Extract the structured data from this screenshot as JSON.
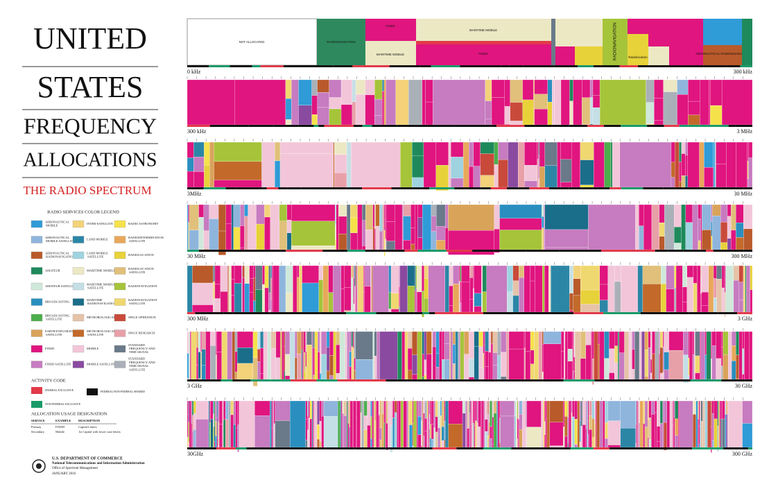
{
  "title": {
    "lines": [
      "UNITED",
      "STATES",
      "FREQUENCY",
      "ALLOCATIONS"
    ],
    "subtitle": "THE RADIO SPECTRUM"
  },
  "legend": {
    "title": "RADIO SERVICES COLOR LEGEND",
    "items": [
      {
        "label": "AERONAUTICAL MOBILE",
        "color": "#2f9bd7"
      },
      {
        "label": "AERONAUTICAL MOBILE SATELLITE",
        "color": "#8fb5dd"
      },
      {
        "label": "AERONAUTICAL RADIONAVIGATION",
        "color": "#b95a2b"
      },
      {
        "label": "AMATEUR",
        "color": "#1e8a5c"
      },
      {
        "label": "AMATEUR SATELLITE",
        "color": "#cfe8da"
      },
      {
        "label": "BROADCASTING",
        "color": "#2a8fbf"
      },
      {
        "label": "BROADCASTING SATELLITE",
        "color": "#4cae4c"
      },
      {
        "label": "EARTH EXPLORATION SATELLITE",
        "color": "#d9a35a"
      },
      {
        "label": "FIXED",
        "color": "#e0157f"
      },
      {
        "label": "FIXED SATELLITE",
        "color": "#c77bc0"
      },
      {
        "label": "INTER-SATELLITE",
        "color": "#f3d27a"
      },
      {
        "label": "LAND MOBILE",
        "color": "#2b86a6"
      },
      {
        "label": "LAND MOBILE SATELLITE",
        "color": "#9fd3e0"
      },
      {
        "label": "MARITIME MOBILE",
        "color": "#ece8c4"
      },
      {
        "label": "MARITIME MOBILE SATELLITE",
        "color": "#c4dfe6"
      },
      {
        "label": "MARITIME RADIONAVIGATION",
        "color": "#1a6e8a"
      },
      {
        "label": "METEOROLOGICAL",
        "color": "#e6c3a8"
      },
      {
        "label": "METEOROLOGICAL SATELLITE",
        "color": "#c36a2a"
      },
      {
        "label": "MOBILE",
        "color": "#f2c6d8"
      },
      {
        "label": "MOBILE SATELLITE",
        "color": "#8a4aa0"
      },
      {
        "label": "RADIO ASTRONOMY",
        "color": "#f5e24a"
      },
      {
        "label": "RADIODETERMINATION SATELLITE",
        "color": "#e8a85a"
      },
      {
        "label": "RADIOLOCATION",
        "color": "#e8d23a"
      },
      {
        "label": "RADIOLOCATION SATELLITE",
        "color": "#e0c07a"
      },
      {
        "label": "RADIONAVIGATION",
        "color": "#a6c43a"
      },
      {
        "label": "RADIONAVIGATION SATELLITE",
        "color": "#f0d870"
      },
      {
        "label": "SPACE OPERATION",
        "color": "#c94a3a"
      },
      {
        "label": "SPACE RESEARCH",
        "color": "#e8a0a8"
      },
      {
        "label": "STANDARD FREQUENCY AND TIME SIGNAL",
        "color": "#6a7a8a"
      },
      {
        "label": "STANDARD FREQUENCY AND TIME SIGNAL SATELLITE",
        "color": "#aab0b8"
      }
    ]
  },
  "activity_code": {
    "title": "ACTIVITY CODE",
    "items": [
      {
        "label": "FEDERAL EXCLUSIVE",
        "color": "#e23a4a"
      },
      {
        "label": "FEDERAL/NON-FEDERAL SHARED",
        "color": "#111111"
      },
      {
        "label": "NON-FEDERAL EXCLUSIVE",
        "color": "#1a9a6a"
      }
    ]
  },
  "usage": {
    "title": "ALLOCATION USAGE DESIGNATION",
    "header": [
      "SERVICE",
      "EXAMPLE",
      "DESCRIPTION"
    ],
    "rows": [
      [
        "Primary",
        "FIXED",
        "Capital Letters"
      ],
      [
        "Secondary",
        "Mobile",
        "1st Capital with lower case letters"
      ]
    ]
  },
  "footer": {
    "department": "U.S. DEPARTMENT OF COMMERCE",
    "agency": "National Telecommunications and Information Administration",
    "office": "Office of Spectrum Management",
    "date": "JANUARY 2016"
  },
  "spectrum": {
    "rows": [
      {
        "start": "0 kHz",
        "end": "300 kHz"
      },
      {
        "start": "300 kHz",
        "end": "3 MHz"
      },
      {
        "start": "3MHz",
        "end": "30 MHz"
      },
      {
        "start": "30 MHz",
        "end": "300 MHz"
      },
      {
        "start": "300 MHz",
        "end": "3 GHz"
      },
      {
        "start": "3 GHz",
        "end": "30 GHz"
      },
      {
        "start": "30GHz",
        "end": "300 GHz"
      }
    ],
    "band_labels": [
      "NOT ALLOCATED",
      "RADIONAVIGATION",
      "FIXED",
      "MARITIME MOBILE",
      "MARITIME MOBILE",
      "FIXED",
      "RADIONAVIGATION",
      "Radiolocation",
      "AERONAUTICAL RADIONAVIGATION"
    ]
  }
}
